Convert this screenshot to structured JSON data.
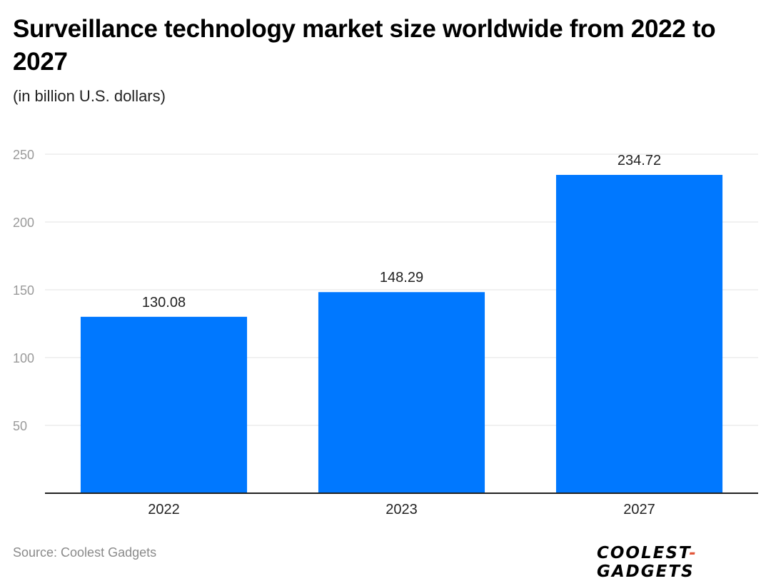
{
  "title": "Surveillance technology market size worldwide from 2022 to 2027",
  "subtitle": "(in billion U.S. dollars)",
  "source": "Source: Coolest Gadgets",
  "logo": {
    "left": "COOLEST",
    "dash": "-",
    "right": "GADGETS"
  },
  "colors": {
    "bar": "#0078ff",
    "grid": "#e3e3e3",
    "axis": "#222222",
    "tick": "#9a9a9a"
  },
  "chart_data": {
    "type": "bar",
    "categories": [
      "2022",
      "2023",
      "2027"
    ],
    "values": [
      130.08,
      148.29,
      234.72
    ],
    "value_labels": [
      "130.08",
      "148.29",
      "234.72"
    ],
    "yticks": [
      "50",
      "100",
      "150",
      "200",
      "250"
    ],
    "ylim": [
      0,
      250
    ],
    "grid": true,
    "legend": "none"
  }
}
